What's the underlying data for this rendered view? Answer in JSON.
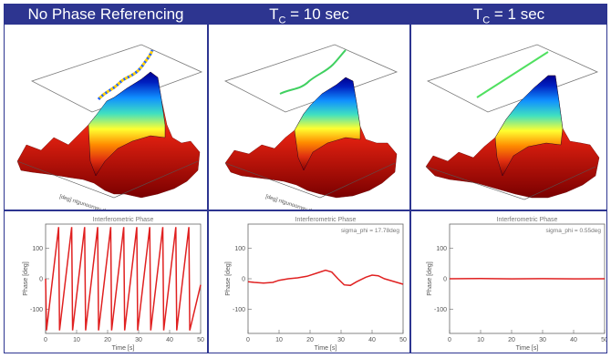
{
  "panels": [
    {
      "title": "No Phase Referencing",
      "title_main": "No Phase Referencing",
      "title_sub": "",
      "title_tail": ""
    },
    {
      "title": "TC = 10 sec",
      "title_main": "T",
      "title_sub": "C",
      "title_tail": " = 10 sec"
    },
    {
      "title": "TC = 1 sec",
      "title_main": "T",
      "title_sub": "C",
      "title_tail": " = 1 sec"
    }
  ],
  "surface_axis_label": "[deg] ntgunoonwy dqenumeu",
  "colors": {
    "header": "#2d3590",
    "phase_line": "#e02020",
    "axes": "#666666"
  },
  "chart_data": [
    {
      "type": "line",
      "title": "Interferometric Phase",
      "annotation": "",
      "xlabel": "Time [s]",
      "ylabel": "Phase [deg]",
      "xlim": [
        0,
        50
      ],
      "ylim": [
        -180,
        180
      ],
      "xticks": [
        0,
        10,
        20,
        30,
        40,
        50
      ],
      "yticks": [
        100,
        0,
        -100
      ],
      "series": [
        {
          "x": [
            0,
            0.3,
            4.2,
            4.5,
            8.4,
            8.7,
            12.6,
            12.9,
            16.8,
            17.1,
            21,
            21.3,
            25.2,
            25.5,
            29.4,
            29.7,
            33.6,
            33.9,
            37.8,
            38.1,
            42,
            42.3,
            46.2,
            46.5,
            50
          ],
          "y": [
            0,
            -170,
            170,
            -170,
            170,
            -170,
            170,
            -170,
            170,
            -170,
            170,
            -170,
            170,
            -170,
            170,
            -170,
            170,
            -170,
            170,
            -170,
            170,
            -170,
            170,
            -170,
            -20
          ]
        }
      ]
    },
    {
      "type": "line",
      "title": "Interferometric Phase",
      "annotation": "sigma_phi = 17.78deg",
      "xlabel": "Time [s]",
      "ylabel": "Phase [deg]",
      "xlim": [
        0,
        50
      ],
      "ylim": [
        -180,
        180
      ],
      "xticks": [
        0,
        10,
        20,
        30,
        40,
        50
      ],
      "yticks": [
        100,
        0,
        -100
      ],
      "series": [
        {
          "x": [
            0,
            2,
            5,
            8,
            10,
            13,
            16,
            19,
            22,
            25,
            27,
            29,
            31,
            33,
            35,
            38,
            40,
            42,
            44,
            46,
            48,
            50
          ],
          "y": [
            -10,
            -12,
            -14,
            -12,
            -5,
            0,
            3,
            8,
            18,
            28,
            22,
            0,
            -20,
            -22,
            -10,
            5,
            12,
            10,
            0,
            -6,
            -12,
            -18
          ]
        }
      ]
    },
    {
      "type": "line",
      "title": "Interferometric Phase",
      "annotation": "sigma_phi = 0.55deg",
      "xlabel": "Time [s]",
      "ylabel": "Phase [deg]",
      "xlim": [
        0,
        50
      ],
      "ylim": [
        -180,
        180
      ],
      "xticks": [
        0,
        10,
        20,
        30,
        40,
        50
      ],
      "yticks": [
        100,
        0,
        -100
      ],
      "series": [
        {
          "x": [
            0,
            10,
            20,
            30,
            40,
            50
          ],
          "y": [
            0,
            0.5,
            -0.3,
            0.4,
            -0.2,
            0.1
          ]
        }
      ]
    }
  ]
}
